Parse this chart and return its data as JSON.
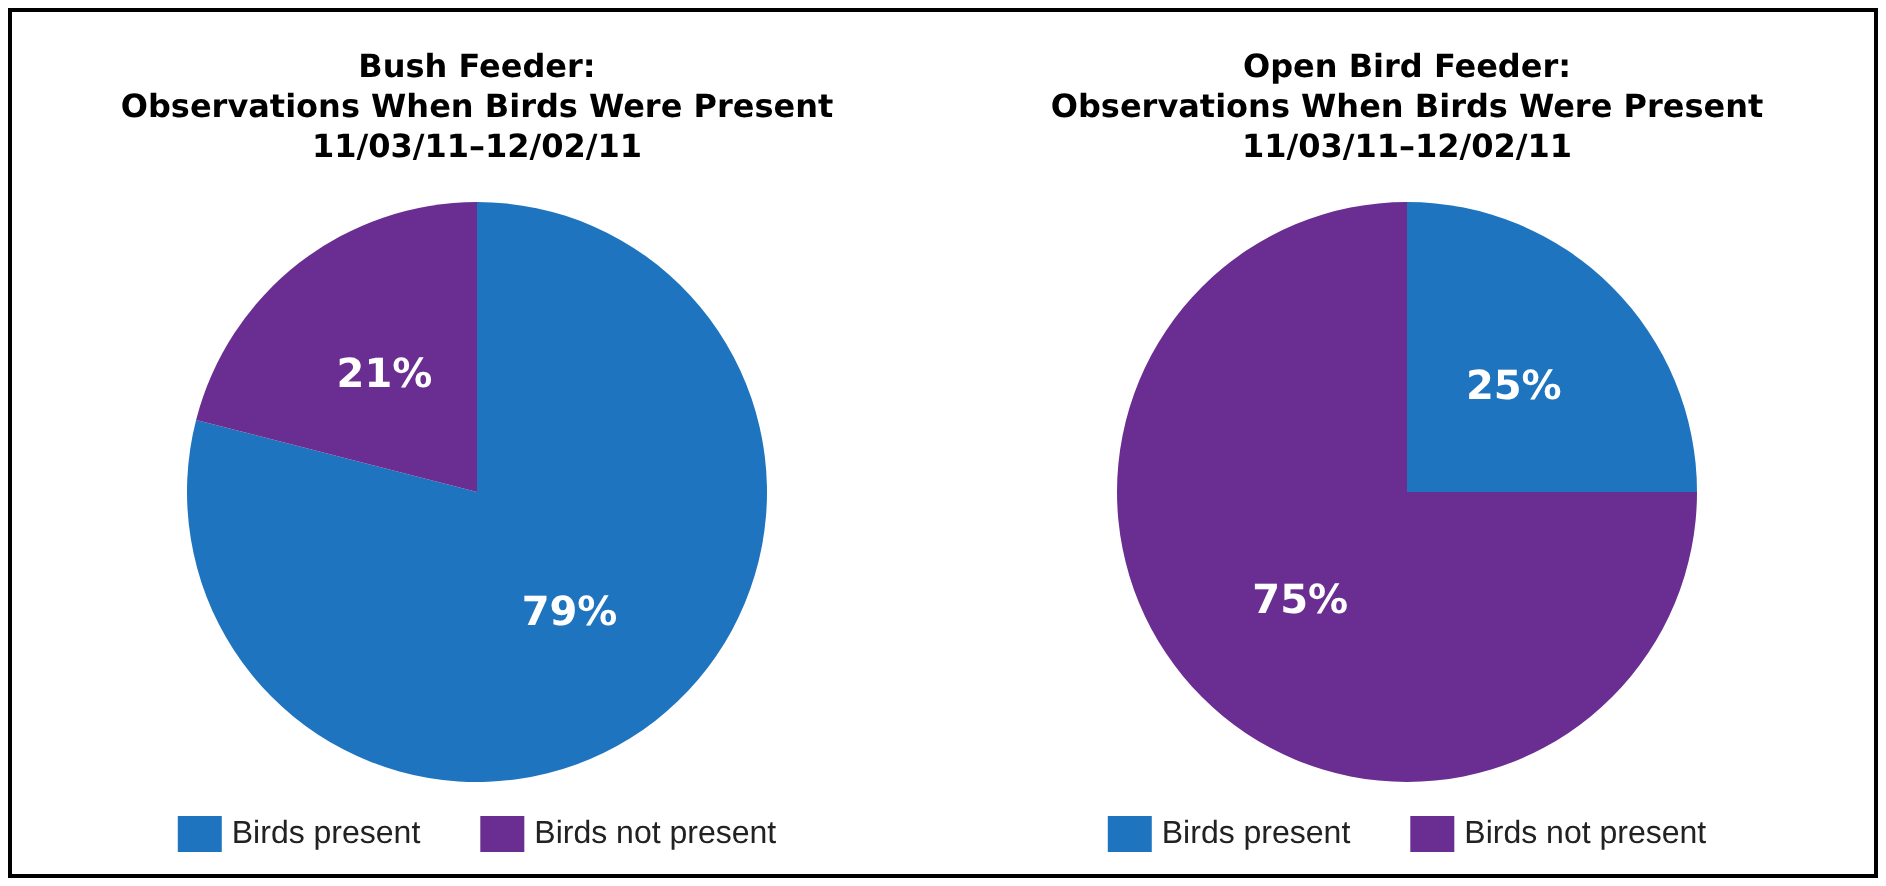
{
  "chart_data": [
    {
      "type": "pie",
      "title": "Bush Feeder:\nObservations When Birds Were Present\n11/03/11–12/02/11",
      "categories": [
        "Birds present",
        "Birds not present"
      ],
      "values": [
        79,
        21
      ],
      "colors": [
        "#1f74bf",
        "#6a2d91"
      ],
      "value_labels": [
        "79%",
        "21%"
      ],
      "legend": "bottom"
    },
    {
      "type": "pie",
      "title": "Open Bird Feeder:\nObservations When Birds Were Present\n11/03/11–12/02/11",
      "categories": [
        "Birds present",
        "Birds not present"
      ],
      "values": [
        25,
        75
      ],
      "colors": [
        "#1f74bf",
        "#6a2d91"
      ],
      "value_labels": [
        "25%",
        "75%"
      ],
      "legend": "bottom"
    }
  ]
}
